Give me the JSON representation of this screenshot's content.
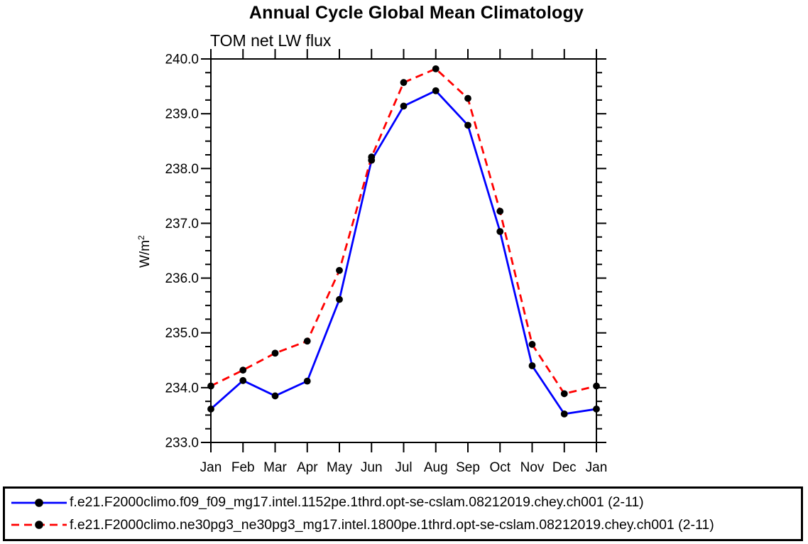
{
  "figure": {
    "background": "#ffffff",
    "frame_color": "#000000",
    "text_color": "#000000"
  },
  "chart_data": {
    "type": "line",
    "title": "Annual Cycle Global Mean Climatology",
    "subtitle": "TOM net LW flux",
    "ylabel": "W/m²",
    "xlabel": "",
    "categories": [
      "Jan",
      "Feb",
      "Mar",
      "Apr",
      "May",
      "Jun",
      "Jul",
      "Aug",
      "Sep",
      "Oct",
      "Nov",
      "Dec",
      "Jan"
    ],
    "ylim": [
      233.0,
      240.0
    ],
    "ytick_major_interval": 1.0,
    "ytick_minor_interval": 0.25,
    "ytick_label_format": "one-decimal",
    "grid": false,
    "legend_position": "bottom-left-box",
    "series": [
      {
        "name": "f.e21.F2000climo.f09_f09_mg17.intel.1152pe.1thrd.opt-se-cslam.08212019.chey.ch001 (2-11)",
        "color": "#0000ff",
        "line_style": "solid",
        "marker": "filled-circle",
        "marker_color": "#000000",
        "values": [
          233.61,
          234.13,
          233.85,
          234.12,
          235.61,
          238.15,
          239.14,
          239.42,
          238.79,
          236.85,
          234.4,
          233.52,
          233.61
        ]
      },
      {
        "name": "f.e21.F2000climo.ne30pg3_ne30pg3_mg17.intel.1800pe.1thrd.opt-se-cslam.08212019.chey.ch001 (2-11)",
        "color": "#ff0000",
        "line_style": "dashed",
        "marker": "filled-circle",
        "marker_color": "#000000",
        "values": [
          234.03,
          234.32,
          234.63,
          234.85,
          236.14,
          238.21,
          239.57,
          239.82,
          239.28,
          237.22,
          234.79,
          233.89,
          234.03
        ]
      }
    ]
  }
}
